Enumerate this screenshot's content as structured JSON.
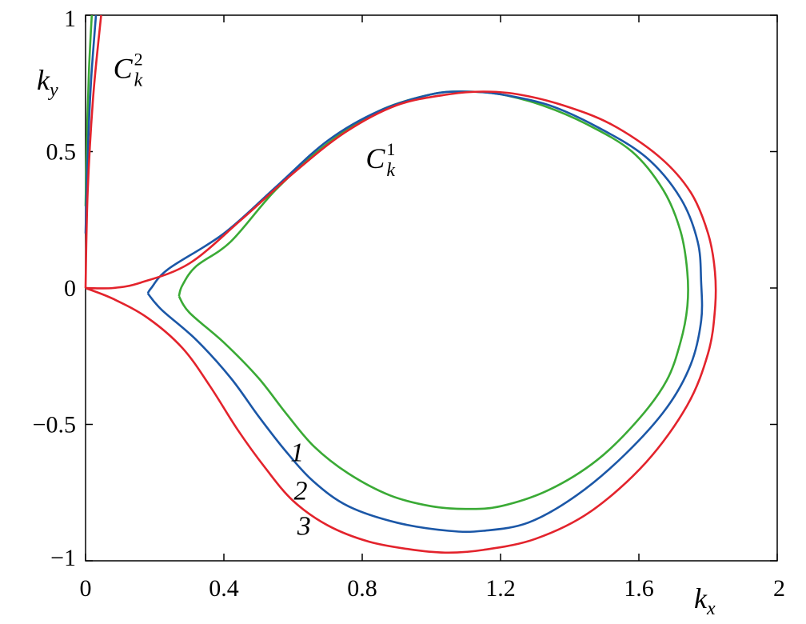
{
  "chart_data": {
    "type": "line",
    "title": "",
    "xlabel": {
      "base": "k",
      "sub": "x"
    },
    "ylabel": {
      "base": "k",
      "sub": "y"
    },
    "xlim": [
      0,
      2
    ],
    "ylim": [
      -1,
      1
    ],
    "xticks": [
      0,
      0.4,
      0.8,
      1.2,
      1.6,
      2
    ],
    "xtick_labels": [
      "0",
      "0.4",
      "0.8",
      "1.2",
      "1.6",
      "2"
    ],
    "yticks": [
      -1,
      -0.5,
      0,
      0.5,
      1
    ],
    "ytick_labels": [
      "−1",
      "−0.5",
      "0",
      "0.5",
      "1"
    ],
    "grid": false,
    "series": [
      {
        "label": "1",
        "color": "#3aaa35",
        "closed_curve": {
          "upper": [
            [
              0.27,
              -0.03
            ],
            [
              0.28,
              0.01
            ],
            [
              0.32,
              0.08
            ],
            [
              0.42,
              0.17
            ],
            [
              0.55,
              0.36
            ],
            [
              0.7,
              0.53
            ],
            [
              0.85,
              0.65
            ],
            [
              1.0,
              0.71
            ],
            [
              1.1,
              0.72
            ],
            [
              1.2,
              0.71
            ],
            [
              1.32,
              0.67
            ],
            [
              1.45,
              0.6
            ],
            [
              1.58,
              0.5
            ],
            [
              1.67,
              0.36
            ],
            [
              1.72,
              0.21
            ],
            [
              1.74,
              0.06
            ],
            [
              1.74,
              -0.07
            ]
          ],
          "lower": [
            [
              0.27,
              -0.03
            ],
            [
              0.3,
              -0.09
            ],
            [
              0.4,
              -0.2
            ],
            [
              0.5,
              -0.33
            ],
            [
              0.58,
              -0.46
            ],
            [
              0.66,
              -0.58
            ],
            [
              0.76,
              -0.68
            ],
            [
              0.88,
              -0.76
            ],
            [
              1.0,
              -0.8
            ],
            [
              1.1,
              -0.81
            ],
            [
              1.2,
              -0.8
            ],
            [
              1.34,
              -0.74
            ],
            [
              1.48,
              -0.63
            ],
            [
              1.6,
              -0.48
            ],
            [
              1.68,
              -0.34
            ],
            [
              1.72,
              -0.2
            ],
            [
              1.74,
              -0.07
            ]
          ]
        }
      },
      {
        "label": "2",
        "color": "#1b57a7",
        "closed_curve": {
          "upper": [
            [
              0.18,
              -0.02
            ],
            [
              0.19,
              0.0
            ],
            [
              0.24,
              0.07
            ],
            [
              0.4,
              0.2
            ],
            [
              0.55,
              0.37
            ],
            [
              0.7,
              0.54
            ],
            [
              0.85,
              0.65
            ],
            [
              1.0,
              0.71
            ],
            [
              1.1,
              0.72
            ],
            [
              1.2,
              0.71
            ],
            [
              1.34,
              0.67
            ],
            [
              1.48,
              0.59
            ],
            [
              1.62,
              0.48
            ],
            [
              1.72,
              0.33
            ],
            [
              1.77,
              0.17
            ],
            [
              1.78,
              0.02
            ],
            [
              1.78,
              -0.12
            ]
          ],
          "lower": [
            [
              0.18,
              -0.02
            ],
            [
              0.22,
              -0.08
            ],
            [
              0.32,
              -0.19
            ],
            [
              0.42,
              -0.33
            ],
            [
              0.5,
              -0.47
            ],
            [
              0.58,
              -0.6
            ],
            [
              0.66,
              -0.71
            ],
            [
              0.76,
              -0.8
            ],
            [
              0.9,
              -0.86
            ],
            [
              1.05,
              -0.89
            ],
            [
              1.15,
              -0.89
            ],
            [
              1.28,
              -0.86
            ],
            [
              1.42,
              -0.76
            ],
            [
              1.56,
              -0.61
            ],
            [
              1.68,
              -0.44
            ],
            [
              1.75,
              -0.28
            ],
            [
              1.78,
              -0.12
            ]
          ]
        }
      },
      {
        "label": "3",
        "color": "#e3232c",
        "closed_curve": {
          "upper": [
            [
              0.0,
              0.0
            ],
            [
              0.08,
              0.0
            ],
            [
              0.16,
              0.02
            ],
            [
              0.3,
              0.09
            ],
            [
              0.45,
              0.25
            ],
            [
              0.6,
              0.42
            ],
            [
              0.75,
              0.57
            ],
            [
              0.9,
              0.67
            ],
            [
              1.05,
              0.71
            ],
            [
              1.15,
              0.72
            ],
            [
              1.25,
              0.71
            ],
            [
              1.38,
              0.67
            ],
            [
              1.52,
              0.6
            ],
            [
              1.66,
              0.48
            ],
            [
              1.75,
              0.35
            ],
            [
              1.8,
              0.2
            ],
            [
              1.82,
              0.06
            ],
            [
              1.82,
              -0.08
            ]
          ],
          "lower": [
            [
              0.0,
              0.0
            ],
            [
              0.08,
              -0.04
            ],
            [
              0.18,
              -0.11
            ],
            [
              0.28,
              -0.22
            ],
            [
              0.36,
              -0.36
            ],
            [
              0.44,
              -0.52
            ],
            [
              0.52,
              -0.66
            ],
            [
              0.6,
              -0.78
            ],
            [
              0.7,
              -0.87
            ],
            [
              0.82,
              -0.93
            ],
            [
              0.95,
              -0.96
            ],
            [
              1.05,
              -0.97
            ],
            [
              1.15,
              -0.96
            ],
            [
              1.3,
              -0.92
            ],
            [
              1.46,
              -0.82
            ],
            [
              1.62,
              -0.64
            ],
            [
              1.74,
              -0.43
            ],
            [
              1.8,
              -0.24
            ],
            [
              1.82,
              -0.08
            ]
          ]
        }
      }
    ],
    "branches_Ck2": [
      {
        "color": "#3aaa35",
        "points": [
          [
            0.0,
            0.3
          ],
          [
            0.004,
            0.55
          ],
          [
            0.01,
            0.8
          ],
          [
            0.018,
            1.0
          ]
        ]
      },
      {
        "color": "#1b57a7",
        "points": [
          [
            0.0,
            0.2
          ],
          [
            0.006,
            0.48
          ],
          [
            0.016,
            0.76
          ],
          [
            0.03,
            1.0
          ]
        ]
      },
      {
        "color": "#e3232c",
        "points": [
          [
            0.0,
            0.0
          ],
          [
            0.006,
            0.35
          ],
          [
            0.022,
            0.7
          ],
          [
            0.045,
            1.0
          ]
        ]
      }
    ],
    "annotations": [
      {
        "name": "ck1",
        "base": "C",
        "sub": "k",
        "sup": "1",
        "x": 0.81,
        "y": 0.44
      },
      {
        "name": "ck2",
        "base": "C",
        "sub": "k",
        "sup": "2",
        "x": 0.08,
        "y": 0.77
      }
    ],
    "curve_labels": [
      {
        "text": "1",
        "x": 0.62,
        "y": -0.6
      },
      {
        "text": "2",
        "x": 0.63,
        "y": -0.74
      },
      {
        "text": "3",
        "x": 0.64,
        "y": -0.87
      }
    ]
  }
}
